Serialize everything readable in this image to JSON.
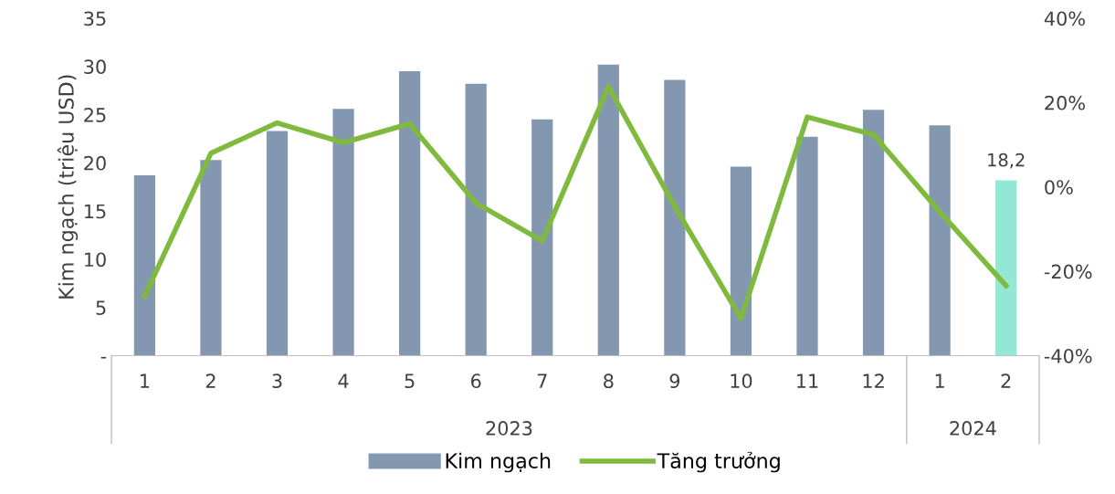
{
  "chart_data": {
    "type": "bar",
    "categories": [
      "1",
      "2",
      "3",
      "4",
      "5",
      "6",
      "7",
      "8",
      "9",
      "10",
      "11",
      "12",
      "1",
      "2"
    ],
    "ylabel": "Kim ngạch (triệu USD)",
    "ylim": [
      0,
      35
    ],
    "yticks": [
      {
        "value": 0,
        "label": "-"
      },
      5,
      10,
      15,
      20,
      25,
      30,
      35
    ],
    "y2lim": [
      -40,
      40
    ],
    "y2ticks": [
      {
        "value": -40,
        "label": "-40%"
      },
      {
        "value": -20,
        "label": "-20%"
      },
      {
        "value": 0,
        "label": "0%"
      },
      {
        "value": 20,
        "label": "20%"
      },
      {
        "value": 40,
        "label": "40%"
      }
    ],
    "series": [
      {
        "name": "Kim ngạch",
        "color": "#8497b0",
        "colors": [
          "#8497b0",
          "#8497b0",
          "#8497b0",
          "#8497b0",
          "#8497b0",
          "#8497b0",
          "#8497b0",
          "#8497b0",
          "#8497b0",
          "#8497b0",
          "#8497b0",
          "#8497b0",
          "#8497b0",
          "#92e8d4"
        ],
        "values": [
          18.7,
          20.3,
          23.3,
          25.6,
          29.5,
          28.2,
          24.5,
          30.2,
          28.6,
          19.6,
          22.7,
          25.5,
          23.9,
          18.2
        ],
        "value_labels": [
          null,
          null,
          null,
          null,
          null,
          null,
          null,
          null,
          null,
          null,
          null,
          null,
          null,
          "18,2"
        ]
      },
      {
        "name": "Tăng trưởng",
        "type": "line",
        "axis": "y2",
        "color": "#7fba3f",
        "values": [
          -25.9,
          8.0,
          15.2,
          10.5,
          15.0,
          -3.8,
          -12.8,
          23.8,
          -4.6,
          -31.2,
          16.6,
          12.4,
          -5.9,
          -23.4
        ]
      }
    ],
    "annotations": [
      "2023",
      "2024"
    ],
    "grid": false,
    "legend": "bottom",
    "marker": "none",
    "line_style": "solid"
  }
}
